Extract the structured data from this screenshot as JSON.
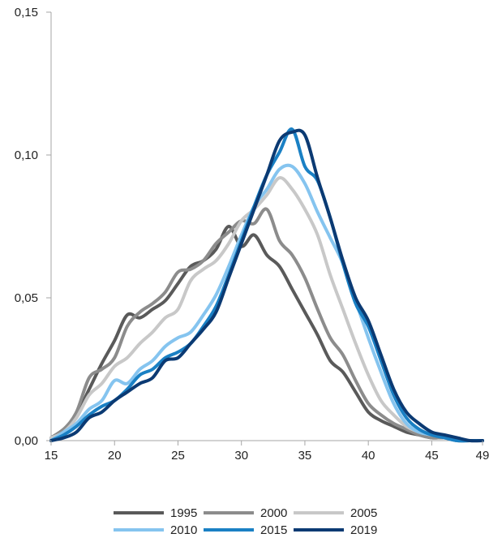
{
  "chart_data": {
    "type": "line",
    "xlim": [
      15,
      49
    ],
    "ylim": [
      0,
      0.15
    ],
    "x_ticks": [
      "15",
      "20",
      "25",
      "30",
      "35",
      "40",
      "45",
      "49"
    ],
    "x_tick_values": [
      15,
      20,
      25,
      30,
      35,
      40,
      45,
      49
    ],
    "y_ticks": [
      "0,00",
      "0,05",
      "0,10",
      "0,15"
    ],
    "y_tick_values": [
      0,
      0.05,
      0.1,
      0.15
    ],
    "grid": false,
    "legend_position": "bottom",
    "x": [
      15,
      16,
      17,
      18,
      19,
      20,
      21,
      22,
      23,
      24,
      25,
      26,
      27,
      28,
      29,
      30,
      31,
      32,
      33,
      34,
      35,
      36,
      37,
      38,
      39,
      40,
      41,
      42,
      43,
      44,
      45,
      46,
      47,
      48,
      49
    ],
    "series": [
      {
        "name": "1995",
        "color": "#5a5a5a",
        "values": [
          0.001,
          0.004,
          0.009,
          0.018,
          0.027,
          0.035,
          0.044,
          0.043,
          0.046,
          0.049,
          0.055,
          0.061,
          0.063,
          0.067,
          0.075,
          0.068,
          0.072,
          0.065,
          0.061,
          0.053,
          0.045,
          0.037,
          0.028,
          0.024,
          0.017,
          0.01,
          0.007,
          0.005,
          0.003,
          0.002,
          0.001,
          0.001,
          0.0,
          0.0,
          0.0
        ]
      },
      {
        "name": "2000",
        "color": "#8c8c8c",
        "values": [
          0.001,
          0.004,
          0.01,
          0.022,
          0.025,
          0.029,
          0.04,
          0.045,
          0.048,
          0.052,
          0.059,
          0.06,
          0.063,
          0.069,
          0.073,
          0.077,
          0.076,
          0.081,
          0.07,
          0.065,
          0.057,
          0.046,
          0.036,
          0.03,
          0.021,
          0.013,
          0.009,
          0.006,
          0.004,
          0.002,
          0.001,
          0.001,
          0.0,
          0.0,
          0.0
        ]
      },
      {
        "name": "2005",
        "color": "#c8c8c8",
        "values": [
          0.001,
          0.003,
          0.008,
          0.016,
          0.02,
          0.026,
          0.029,
          0.034,
          0.038,
          0.043,
          0.046,
          0.056,
          0.06,
          0.063,
          0.069,
          0.077,
          0.081,
          0.086,
          0.092,
          0.088,
          0.081,
          0.072,
          0.058,
          0.046,
          0.034,
          0.023,
          0.014,
          0.009,
          0.005,
          0.003,
          0.002,
          0.001,
          0.0,
          0.0,
          0.0
        ]
      },
      {
        "name": "2010",
        "color": "#85c4ef",
        "values": [
          0.0,
          0.003,
          0.006,
          0.011,
          0.014,
          0.021,
          0.02,
          0.025,
          0.028,
          0.033,
          0.036,
          0.038,
          0.044,
          0.051,
          0.061,
          0.072,
          0.082,
          0.088,
          0.095,
          0.096,
          0.09,
          0.08,
          0.071,
          0.062,
          0.049,
          0.036,
          0.024,
          0.013,
          0.006,
          0.003,
          0.002,
          0.001,
          0.0,
          0.0,
          0.0
        ]
      },
      {
        "name": "2015",
        "color": "#1a80c4",
        "values": [
          0.0,
          0.002,
          0.005,
          0.009,
          0.012,
          0.014,
          0.018,
          0.023,
          0.025,
          0.029,
          0.031,
          0.034,
          0.04,
          0.047,
          0.058,
          0.07,
          0.082,
          0.093,
          0.101,
          0.109,
          0.096,
          0.091,
          0.078,
          0.062,
          0.048,
          0.04,
          0.028,
          0.016,
          0.008,
          0.004,
          0.002,
          0.001,
          0.0,
          0.0,
          0.0
        ]
      },
      {
        "name": "2019",
        "color": "#0b3a73",
        "values": [
          0.0,
          0.001,
          0.003,
          0.008,
          0.01,
          0.014,
          0.017,
          0.02,
          0.022,
          0.028,
          0.029,
          0.034,
          0.039,
          0.045,
          0.057,
          0.069,
          0.081,
          0.093,
          0.105,
          0.108,
          0.107,
          0.092,
          0.078,
          0.063,
          0.05,
          0.042,
          0.03,
          0.018,
          0.01,
          0.006,
          0.003,
          0.002,
          0.001,
          0.0,
          0.0
        ]
      }
    ]
  }
}
